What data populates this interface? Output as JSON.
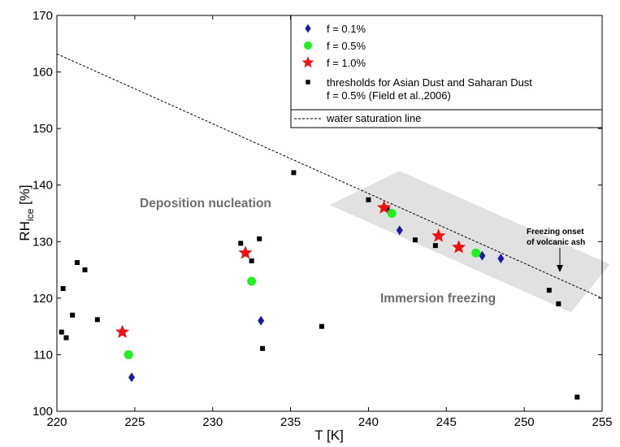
{
  "chart_data": {
    "type": "scatter",
    "xlabel": "T [K]",
    "ylabel_main": "RH",
    "ylabel_sub": "ice",
    "ylabel_unit": " [%]",
    "xlim": [
      220,
      255
    ],
    "ylim": [
      100,
      170
    ],
    "xticks": [
      "220",
      "225",
      "230",
      "235",
      "240",
      "245",
      "250",
      "255"
    ],
    "yticks": [
      "100",
      "110",
      "120",
      "130",
      "140",
      "150",
      "160",
      "170"
    ],
    "grid": false,
    "legend_position": "top-right",
    "series": [
      {
        "name": "f = 0.1%",
        "marker": "diamond",
        "color": "#1a1aa6",
        "points": [
          [
            224.8,
            106
          ],
          [
            233.1,
            116
          ],
          [
            242,
            132
          ],
          [
            247.3,
            127.5
          ],
          [
            248.5,
            127
          ]
        ]
      },
      {
        "name": "f = 0.5%",
        "marker": "circle",
        "color": "#22ee22",
        "points": [
          [
            224.6,
            110
          ],
          [
            232.5,
            123
          ],
          [
            241.5,
            135
          ],
          [
            246.9,
            128
          ]
        ]
      },
      {
        "name": "f = 1.0%",
        "marker": "star",
        "color": "#ee1111",
        "points": [
          [
            224.2,
            114
          ],
          [
            232.1,
            128
          ],
          [
            241,
            136
          ],
          [
            244.5,
            131
          ],
          [
            245.8,
            129
          ]
        ]
      },
      {
        "name": "thresholds for Asian Dust and Saharan Dust",
        "name_line2": "f = 0.5% (Field et al.,2006)",
        "marker": "square",
        "color": "#000000",
        "points": [
          [
            220.3,
            114
          ],
          [
            220.4,
            121.7
          ],
          [
            220.6,
            113
          ],
          [
            221,
            117
          ],
          [
            221.3,
            126.3
          ],
          [
            221.8,
            125
          ],
          [
            222.6,
            116.2
          ],
          [
            231.8,
            129.7
          ],
          [
            232.5,
            126.6
          ],
          [
            233,
            130.5
          ],
          [
            233.2,
            111.1
          ],
          [
            235.2,
            142.2
          ],
          [
            237,
            115
          ],
          [
            240,
            137.4
          ],
          [
            241.2,
            135.8
          ],
          [
            243,
            130.3
          ],
          [
            244.3,
            129.3
          ],
          [
            251.6,
            121.4
          ],
          [
            252.2,
            119
          ],
          [
            253.4,
            102.5
          ]
        ]
      }
    ],
    "water_saturation_line": {
      "name": "water saturation line",
      "points": [
        [
          220,
          163.2
        ],
        [
          255,
          120
        ]
      ]
    },
    "shaded_band": {
      "corners": [
        [
          237.5,
          136.5
        ],
        [
          242,
          142.5
        ],
        [
          255.5,
          126
        ],
        [
          253,
          117.5
        ]
      ]
    },
    "annotations": {
      "deposition": "Deposition nucleation",
      "immersion": "Immersion freezing",
      "onset_line1": "Freezing onset",
      "onset_line2": "of volcanic ash"
    }
  }
}
